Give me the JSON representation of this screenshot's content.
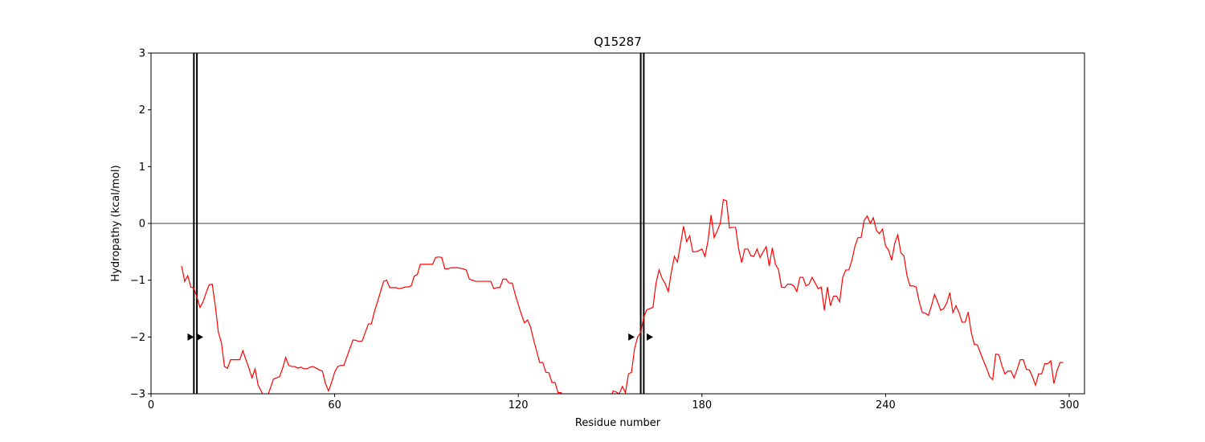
{
  "chart_data": {
    "type": "line",
    "title": "Q15287",
    "xlabel": "Residue number",
    "ylabel": "Hydropathy (kcal/mol)",
    "xlim": [
      0,
      305
    ],
    "ylim": [
      -3,
      3
    ],
    "xticks": [
      0,
      60,
      120,
      180,
      240,
      300
    ],
    "yticks": [
      -3,
      -2,
      -1,
      0,
      1,
      2,
      3
    ],
    "grid": false,
    "reference_line_y": 0,
    "series": [
      {
        "color": "#ff0000",
        "points": [
          [
            10,
            -0.75
          ],
          [
            11,
            -1.02
          ],
          [
            12,
            -0.92
          ],
          [
            13,
            -1.12
          ],
          [
            14,
            -1.14
          ],
          [
            15,
            -1.3
          ],
          [
            16,
            -1.48
          ],
          [
            17,
            -1.38
          ],
          [
            18,
            -1.22
          ],
          [
            19,
            -1.08
          ],
          [
            20,
            -1.07
          ],
          [
            21,
            -1.45
          ],
          [
            22,
            -1.92
          ],
          [
            23,
            -2.1
          ],
          [
            24,
            -2.52
          ],
          [
            25,
            -2.55
          ],
          [
            26,
            -2.4
          ],
          [
            27,
            -2.4
          ],
          [
            28,
            -2.4
          ],
          [
            29,
            -2.4
          ],
          [
            30,
            -2.24
          ],
          [
            31,
            -2.4
          ],
          [
            32,
            -2.55
          ],
          [
            33,
            -2.72
          ],
          [
            34,
            -2.56
          ],
          [
            35,
            -2.85
          ],
          [
            36,
            -2.95
          ],
          [
            37,
            -3.08
          ],
          [
            38,
            -3.05
          ],
          [
            39,
            -2.9
          ],
          [
            40,
            -2.74
          ],
          [
            41,
            -2.72
          ],
          [
            42,
            -2.7
          ],
          [
            43,
            -2.55
          ],
          [
            44,
            -2.36
          ],
          [
            45,
            -2.5
          ],
          [
            46,
            -2.52
          ],
          [
            47,
            -2.52
          ],
          [
            48,
            -2.55
          ],
          [
            49,
            -2.53
          ],
          [
            50,
            -2.56
          ],
          [
            51,
            -2.56
          ],
          [
            52,
            -2.53
          ],
          [
            53,
            -2.52
          ],
          [
            54,
            -2.55
          ],
          [
            55,
            -2.58
          ],
          [
            56,
            -2.6
          ],
          [
            57,
            -2.82
          ],
          [
            58,
            -2.95
          ],
          [
            59,
            -2.8
          ],
          [
            60,
            -2.62
          ],
          [
            61,
            -2.52
          ],
          [
            62,
            -2.5
          ],
          [
            63,
            -2.5
          ],
          [
            64,
            -2.35
          ],
          [
            65,
            -2.2
          ],
          [
            66,
            -2.05
          ],
          [
            67,
            -2.06
          ],
          [
            68,
            -2.08
          ],
          [
            69,
            -2.07
          ],
          [
            70,
            -1.92
          ],
          [
            71,
            -1.77
          ],
          [
            72,
            -1.77
          ],
          [
            73,
            -1.55
          ],
          [
            74,
            -1.38
          ],
          [
            75,
            -1.2
          ],
          [
            76,
            -1.02
          ],
          [
            77,
            -1.0
          ],
          [
            78,
            -1.13
          ],
          [
            79,
            -1.13
          ],
          [
            80,
            -1.13
          ],
          [
            81,
            -1.15
          ],
          [
            82,
            -1.14
          ],
          [
            83,
            -1.12
          ],
          [
            84,
            -1.12
          ],
          [
            85,
            -1.1
          ],
          [
            86,
            -0.93
          ],
          [
            87,
            -0.9
          ],
          [
            88,
            -0.72
          ],
          [
            89,
            -0.72
          ],
          [
            90,
            -0.72
          ],
          [
            91,
            -0.72
          ],
          [
            92,
            -0.72
          ],
          [
            93,
            -0.6
          ],
          [
            94,
            -0.59
          ],
          [
            95,
            -0.6
          ],
          [
            96,
            -0.8
          ],
          [
            97,
            -0.8
          ],
          [
            98,
            -0.78
          ],
          [
            99,
            -0.78
          ],
          [
            100,
            -0.78
          ],
          [
            101,
            -0.79
          ],
          [
            102,
            -0.8
          ],
          [
            103,
            -0.82
          ],
          [
            104,
            -0.98
          ],
          [
            105,
            -1.0
          ],
          [
            106,
            -1.02
          ],
          [
            107,
            -1.02
          ],
          [
            108,
            -1.02
          ],
          [
            109,
            -1.02
          ],
          [
            110,
            -1.02
          ],
          [
            111,
            -1.02
          ],
          [
            112,
            -1.15
          ],
          [
            113,
            -1.13
          ],
          [
            114,
            -1.13
          ],
          [
            115,
            -0.98
          ],
          [
            116,
            -0.98
          ],
          [
            117,
            -1.05
          ],
          [
            118,
            -1.05
          ],
          [
            119,
            -1.25
          ],
          [
            120,
            -1.43
          ],
          [
            121,
            -1.6
          ],
          [
            122,
            -1.75
          ],
          [
            123,
            -1.7
          ],
          [
            124,
            -1.82
          ],
          [
            125,
            -2.05
          ],
          [
            126,
            -2.25
          ],
          [
            127,
            -2.45
          ],
          [
            128,
            -2.45
          ],
          [
            129,
            -2.62
          ],
          [
            130,
            -2.63
          ],
          [
            131,
            -2.8
          ],
          [
            132,
            -2.8
          ],
          [
            133,
            -2.98
          ],
          [
            134,
            -2.98
          ],
          [
            135,
            -3.08
          ],
          [
            136,
            -3.1
          ],
          [
            137,
            -3.1
          ],
          [
            138,
            -3.1
          ],
          [
            139,
            -3.1
          ],
          [
            140,
            -3.1
          ],
          [
            141,
            -3.1
          ],
          [
            142,
            -3.1
          ],
          [
            143,
            -3.1
          ],
          [
            144,
            -3.1
          ],
          [
            145,
            -3.1
          ],
          [
            146,
            -3.1
          ],
          [
            147,
            -3.1
          ],
          [
            148,
            -3.1
          ],
          [
            149,
            -3.1
          ],
          [
            150,
            -3.1
          ],
          [
            151,
            -2.95
          ],
          [
            152,
            -2.97
          ],
          [
            153,
            -3.0
          ],
          [
            154,
            -2.87
          ],
          [
            155,
            -2.98
          ],
          [
            156,
            -2.65
          ],
          [
            157,
            -2.62
          ],
          [
            158,
            -2.2
          ],
          [
            159,
            -2.0
          ],
          [
            160,
            -1.92
          ],
          [
            161,
            -1.65
          ],
          [
            162,
            -1.52
          ],
          [
            163,
            -1.5
          ],
          [
            164,
            -1.48
          ],
          [
            165,
            -1.05
          ],
          [
            166,
            -0.82
          ],
          [
            167,
            -0.97
          ],
          [
            168,
            -1.06
          ],
          [
            169,
            -1.2
          ],
          [
            170,
            -0.86
          ],
          [
            171,
            -0.58
          ],
          [
            172,
            -0.68
          ],
          [
            173,
            -0.37
          ],
          [
            174,
            -0.05
          ],
          [
            175,
            -0.32
          ],
          [
            176,
            -0.22
          ],
          [
            177,
            -0.5
          ],
          [
            178,
            -0.5
          ],
          [
            179,
            -0.48
          ],
          [
            180,
            -0.45
          ],
          [
            181,
            -0.58
          ],
          [
            182,
            -0.3
          ],
          [
            183,
            0.15
          ],
          [
            184,
            -0.25
          ],
          [
            185,
            -0.13
          ],
          [
            186,
            0.0
          ],
          [
            187,
            0.42
          ],
          [
            188,
            0.4
          ],
          [
            189,
            -0.08
          ],
          [
            190,
            -0.07
          ],
          [
            191,
            -0.07
          ],
          [
            192,
            -0.45
          ],
          [
            193,
            -0.69
          ],
          [
            194,
            -0.45
          ],
          [
            195,
            -0.45
          ],
          [
            196,
            -0.57
          ],
          [
            197,
            -0.58
          ],
          [
            198,
            -0.45
          ],
          [
            199,
            -0.6
          ],
          [
            200,
            -0.5
          ],
          [
            201,
            -0.41
          ],
          [
            202,
            -0.75
          ],
          [
            203,
            -0.43
          ],
          [
            204,
            -0.72
          ],
          [
            205,
            -0.81
          ],
          [
            206,
            -1.12
          ],
          [
            207,
            -1.13
          ],
          [
            208,
            -1.07
          ],
          [
            209,
            -1.07
          ],
          [
            210,
            -1.1
          ],
          [
            211,
            -1.2
          ],
          [
            212,
            -0.95
          ],
          [
            213,
            -0.95
          ],
          [
            214,
            -1.1
          ],
          [
            215,
            -1.07
          ],
          [
            216,
            -0.95
          ],
          [
            217,
            -1.05
          ],
          [
            218,
            -1.15
          ],
          [
            219,
            -1.12
          ],
          [
            220,
            -1.53
          ],
          [
            221,
            -1.12
          ],
          [
            222,
            -1.45
          ],
          [
            223,
            -1.28
          ],
          [
            224,
            -1.28
          ],
          [
            225,
            -1.38
          ],
          [
            226,
            -0.95
          ],
          [
            227,
            -0.82
          ],
          [
            228,
            -0.82
          ],
          [
            229,
            -0.65
          ],
          [
            230,
            -0.4
          ],
          [
            231,
            -0.25
          ],
          [
            232,
            -0.25
          ],
          [
            233,
            0.05
          ],
          [
            234,
            0.13
          ],
          [
            235,
            0.0
          ],
          [
            236,
            0.1
          ],
          [
            237,
            -0.12
          ],
          [
            238,
            -0.18
          ],
          [
            239,
            -0.1
          ],
          [
            240,
            -0.4
          ],
          [
            241,
            -0.47
          ],
          [
            242,
            -0.65
          ],
          [
            243,
            -0.35
          ],
          [
            244,
            -0.2
          ],
          [
            245,
            -0.52
          ],
          [
            246,
            -0.57
          ],
          [
            247,
            -0.92
          ],
          [
            248,
            -1.1
          ],
          [
            249,
            -1.1
          ],
          [
            250,
            -1.12
          ],
          [
            251,
            -1.38
          ],
          [
            252,
            -1.57
          ],
          [
            253,
            -1.58
          ],
          [
            254,
            -1.62
          ],
          [
            255,
            -1.45
          ],
          [
            256,
            -1.25
          ],
          [
            257,
            -1.38
          ],
          [
            258,
            -1.53
          ],
          [
            259,
            -1.5
          ],
          [
            260,
            -1.4
          ],
          [
            261,
            -1.22
          ],
          [
            262,
            -1.57
          ],
          [
            263,
            -1.45
          ],
          [
            264,
            -1.57
          ],
          [
            265,
            -1.74
          ],
          [
            266,
            -1.74
          ],
          [
            267,
            -1.56
          ],
          [
            268,
            -1.92
          ],
          [
            269,
            -2.13
          ],
          [
            270,
            -2.14
          ],
          [
            271,
            -2.28
          ],
          [
            272,
            -2.42
          ],
          [
            273,
            -2.55
          ],
          [
            274,
            -2.7
          ],
          [
            275,
            -2.75
          ],
          [
            276,
            -2.3
          ],
          [
            277,
            -2.31
          ],
          [
            278,
            -2.5
          ],
          [
            279,
            -2.65
          ],
          [
            280,
            -2.6
          ],
          [
            281,
            -2.6
          ],
          [
            282,
            -2.72
          ],
          [
            283,
            -2.57
          ],
          [
            284,
            -2.4
          ],
          [
            285,
            -2.4
          ],
          [
            286,
            -2.57
          ],
          [
            287,
            -2.58
          ],
          [
            288,
            -2.7
          ],
          [
            289,
            -2.85
          ],
          [
            290,
            -2.65
          ],
          [
            291,
            -2.65
          ],
          [
            292,
            -2.47
          ],
          [
            293,
            -2.47
          ],
          [
            294,
            -2.42
          ],
          [
            295,
            -2.82
          ],
          [
            296,
            -2.6
          ],
          [
            297,
            -2.45
          ],
          [
            298,
            -2.45
          ]
        ]
      }
    ],
    "vertical_markers": [
      14,
      15,
      160,
      161
    ],
    "arrow_markers": [
      {
        "x": 13,
        "y": -2,
        "direction": "right"
      },
      {
        "x": 16,
        "y": -2,
        "direction": "right"
      },
      {
        "x": 157,
        "y": -2,
        "direction": "right"
      },
      {
        "x": 163,
        "y": -2,
        "direction": "right"
      }
    ]
  }
}
